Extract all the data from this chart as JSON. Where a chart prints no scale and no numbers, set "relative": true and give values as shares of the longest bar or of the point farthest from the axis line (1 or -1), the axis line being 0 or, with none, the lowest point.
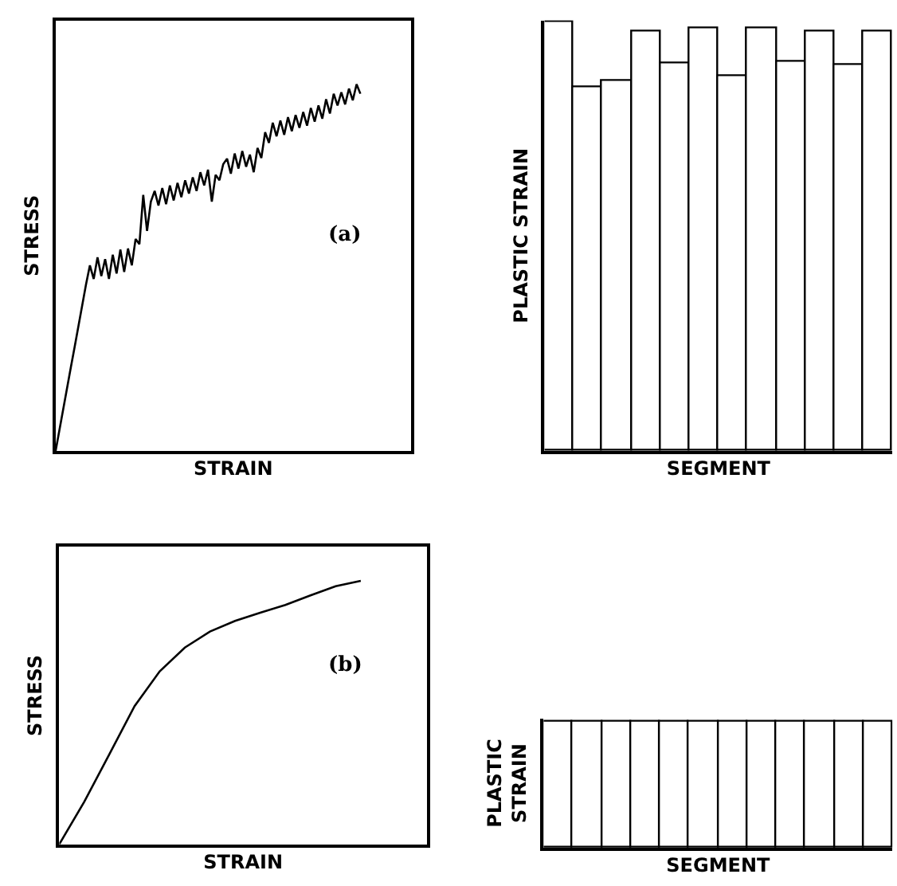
{
  "chart_data": [
    {
      "type": "line",
      "relative": true,
      "xlabel": "STRAIN",
      "ylabel": "STRESS",
      "annotations": [
        "(a)"
      ],
      "tick_labels": false,
      "categories": [
        null,
        null,
        null,
        null,
        null,
        null,
        null,
        null,
        null,
        null,
        null,
        null,
        null,
        null,
        null,
        null,
        null,
        null,
        null,
        null,
        null,
        null,
        null,
        null,
        null,
        null,
        null,
        null,
        null,
        null,
        null,
        null,
        null,
        null,
        null,
        null,
        null,
        null,
        null,
        null,
        null,
        null,
        null,
        null,
        null,
        null,
        null,
        null,
        null,
        null,
        null,
        null,
        null,
        null,
        null,
        null,
        null,
        null,
        null,
        null,
        null,
        null,
        null,
        null,
        null,
        null,
        null,
        null,
        null,
        null,
        null,
        null,
        null,
        null,
        null,
        null,
        null,
        null,
        null,
        null,
        null
      ],
      "series": [
        {
          "color": "#000000",
          "values": [
            0,
            0.057,
            0.114,
            0.171,
            0.228,
            0.284,
            0.341,
            0.398,
            0.455,
            0.506,
            0.469,
            0.528,
            0.477,
            0.523,
            0.469,
            0.535,
            0.484,
            0.549,
            0.488,
            0.552,
            0.506,
            0.578,
            0.564,
            0.698,
            0.6,
            0.68,
            0.709,
            0.669,
            0.717,
            0.673,
            0.724,
            0.683,
            0.731,
            0.692,
            0.738,
            0.702,
            0.746,
            0.709,
            0.76,
            0.724,
            0.767,
            0.68,
            0.753,
            0.738,
            0.782,
            0.797,
            0.756,
            0.811,
            0.77,
            0.818,
            0.775,
            0.808,
            0.76,
            0.826,
            0.799,
            0.869,
            0.84,
            0.895,
            0.858,
            0.901,
            0.862,
            0.91,
            0.872,
            0.916,
            0.881,
            0.924,
            0.887,
            0.935,
            0.898,
            0.942,
            0.906,
            0.959,
            0.92,
            0.974,
            0.942,
            0.978,
            0.945,
            0.988,
            0.956,
            1.0,
            0.974
          ]
        }
      ]
    },
    {
      "type": "bar",
      "relative": true,
      "xlabel": "SEGMENT",
      "ylabel": "PLASTIC STRAIN",
      "tick_labels": false,
      "categories": [
        null,
        null,
        null,
        null,
        null,
        null,
        null,
        null,
        null,
        null,
        null,
        null
      ],
      "series": [
        {
          "color": "#ffffff",
          "values": [
            1.0,
            0.85,
            0.865,
            0.98,
            0.905,
            0.985,
            0.875,
            0.985,
            0.91,
            0.98,
            0.9,
            0.98
          ]
        }
      ]
    },
    {
      "type": "line",
      "relative": true,
      "xlabel": "STRAIN",
      "ylabel": "STRESS",
      "annotations": [
        "(b)"
      ],
      "tick_labels": false,
      "categories": [
        null,
        null,
        null,
        null,
        null,
        null,
        null,
        null,
        null,
        null,
        null,
        null,
        null
      ],
      "series": [
        {
          "color": "#000000",
          "values": [
            0,
            0.162,
            0.343,
            0.525,
            0.657,
            0.747,
            0.808,
            0.848,
            0.879,
            0.909,
            0.945,
            0.98,
            1.0
          ]
        }
      ]
    },
    {
      "type": "bar",
      "relative": true,
      "xlabel": "SEGMENT",
      "ylabel": "PLASTIC\nSTRAIN",
      "tick_labels": false,
      "categories": [
        null,
        null,
        null,
        null,
        null,
        null,
        null,
        null,
        null,
        null,
        null,
        null
      ],
      "series": [
        {
          "color": "#ffffff",
          "values": [
            1,
            1,
            1,
            1,
            1,
            1,
            1,
            1,
            1,
            1,
            1,
            1
          ]
        }
      ]
    }
  ]
}
